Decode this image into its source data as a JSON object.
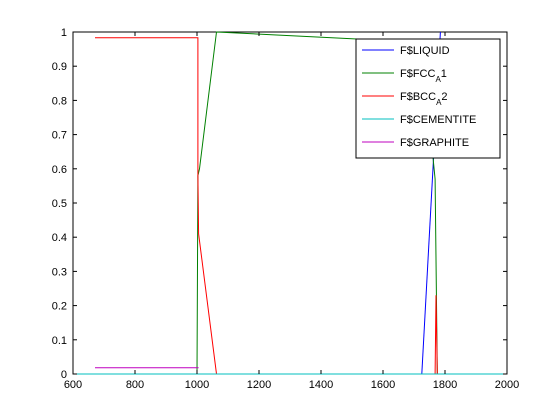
{
  "chart_data": {
    "type": "line",
    "xlim": [
      600,
      2000
    ],
    "ylim": [
      0,
      1
    ],
    "xticks": [
      600,
      800,
      1000,
      1200,
      1400,
      1600,
      1800,
      2000
    ],
    "yticks": [
      0,
      0.1,
      0.2,
      0.3,
      0.4,
      0.5,
      0.6,
      0.7,
      0.8,
      0.9,
      1
    ],
    "grid": false,
    "legend_position": "top-right",
    "series": [
      {
        "name": "F$LIQUID",
        "color": "#0000ff",
        "points": [
          [
            1725,
            0
          ],
          [
            1785,
            1
          ]
        ]
      },
      {
        "name": "F$FCC_A1",
        "color": "#008000",
        "points": [
          [
            1000,
            0
          ],
          [
            1003,
            0.58
          ],
          [
            1008,
            0.6
          ],
          [
            1063,
            1
          ],
          [
            1725,
            0.97
          ],
          [
            1768,
            0.57
          ],
          [
            1775,
            0
          ]
        ]
      },
      {
        "name": "F$BCC_A2",
        "color": "#ff0000",
        "points": [
          [
            671,
            0.983
          ],
          [
            1003,
            0.983
          ],
          [
            1003,
            0.58
          ],
          [
            1005,
            0.41
          ],
          [
            1063,
            0
          ],
          [
            1768,
            0
          ],
          [
            1771,
            0.23
          ],
          [
            1775,
            0
          ]
        ]
      },
      {
        "name": "F$CEMENTITE",
        "color": "#00bfbf",
        "points": [
          [
            600,
            0
          ],
          [
            2000,
            0
          ]
        ]
      },
      {
        "name": "F$GRAPHITE",
        "color": "#bf00bf",
        "points": [
          [
            671,
            0.018
          ],
          [
            1005,
            0.018
          ]
        ]
      }
    ]
  }
}
